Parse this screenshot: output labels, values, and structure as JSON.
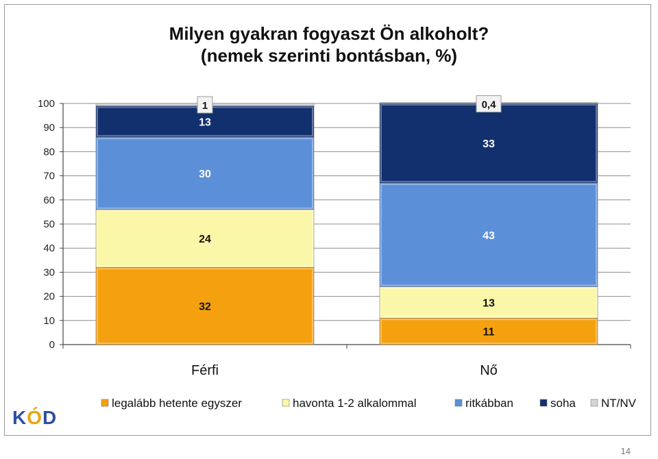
{
  "title_line1": "Milyen gyakran fogyaszt Ön alkoholt?",
  "title_line2": "(nemek szerinti bontásban, %)",
  "logo": "KÓD",
  "slide_number": "14",
  "colors": {
    "hetente": "#f5a00e",
    "havonta": "#fbf7a8",
    "ritkabban": "#5b8fd8",
    "soha": "#13306e",
    "ntnv": "#d6d6d6",
    "grid": "#8c8c8c",
    "logo_k": "#2d4fa2",
    "logo_o": "#e8a40f",
    "logo_d": "#2d4fa2"
  },
  "chart_data": {
    "type": "bar",
    "stacked": true,
    "categories": [
      "Férfi",
      "Nő"
    ],
    "series": [
      {
        "name": "legalább hetente egyszer",
        "values": [
          32,
          11
        ],
        "labels": [
          "32",
          "11"
        ],
        "color_key": "hetente"
      },
      {
        "name": "havonta 1-2 alkalommal",
        "values": [
          24,
          13
        ],
        "labels": [
          "24",
          "13"
        ],
        "color_key": "havonta"
      },
      {
        "name": "ritkábban",
        "values": [
          30,
          43
        ],
        "labels": [
          "30",
          "43"
        ],
        "color_key": "ritkabban"
      },
      {
        "name": "soha",
        "values": [
          13,
          33
        ],
        "labels": [
          "13",
          "33"
        ],
        "color_key": "soha"
      },
      {
        "name": "NT/NV",
        "values": [
          1,
          0.4
        ],
        "labels": [
          "1",
          "0,4"
        ],
        "color_key": "ntnv"
      }
    ],
    "ylim": [
      0,
      100
    ],
    "yticks": [
      "0",
      "10",
      "20",
      "30",
      "40",
      "50",
      "60",
      "70",
      "80",
      "90",
      "100"
    ],
    "grid": true,
    "legend_position": "bottom"
  }
}
